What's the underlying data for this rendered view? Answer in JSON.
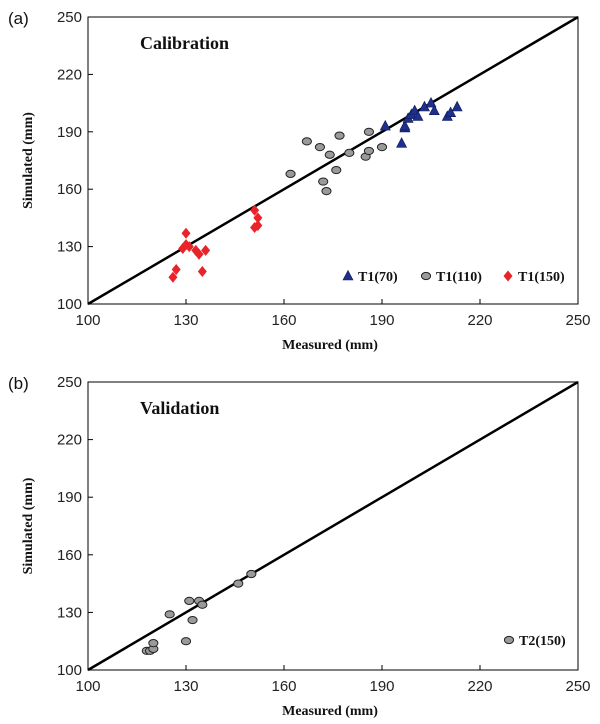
{
  "chart_data": [
    {
      "type": "scatter",
      "panel_label": "(a)",
      "title": "Calibration",
      "xlabel": "Measured (mm)",
      "ylabel": "Simulated (mm)",
      "xlim": [
        100,
        250
      ],
      "ylim": [
        100,
        250
      ],
      "xticks": [
        "100",
        "130",
        "160",
        "190",
        "220",
        "250"
      ],
      "yticks": [
        "100",
        "130",
        "160",
        "190",
        "220",
        "250"
      ],
      "reference_line": "1:1",
      "legend_position": "bottom-right",
      "series": [
        {
          "name": "T1(70)",
          "marker": "triangle",
          "color": "#1f2f8c",
          "points": [
            [
              191,
              193
            ],
            [
              196,
              184
            ],
            [
              197,
              192
            ],
            [
              197,
              193
            ],
            [
              198,
              197
            ],
            [
              199,
              199
            ],
            [
              200,
              201
            ],
            [
              201,
              198
            ],
            [
              203,
              203
            ],
            [
              205,
              205
            ],
            [
              206,
              201
            ],
            [
              210,
              198
            ],
            [
              211,
              200
            ],
            [
              213,
              203
            ]
          ]
        },
        {
          "name": "T1(110)",
          "marker": "circle",
          "color": "#9a9a9a",
          "points": [
            [
              162,
              168
            ],
            [
              167,
              185
            ],
            [
              171,
              182
            ],
            [
              172,
              164
            ],
            [
              173,
              159
            ],
            [
              174,
              178
            ],
            [
              176,
              170
            ],
            [
              177,
              188
            ],
            [
              180,
              179
            ],
            [
              185,
              177
            ],
            [
              186,
              180
            ],
            [
              186,
              190
            ],
            [
              190,
              182
            ]
          ]
        },
        {
          "name": "T1(150)",
          "marker": "diamond",
          "color": "#e8232a",
          "points": [
            [
              126,
              114
            ],
            [
              127,
              118
            ],
            [
              129,
              129
            ],
            [
              130,
              131
            ],
            [
              130,
              137
            ],
            [
              131,
              130
            ],
            [
              133,
              128
            ],
            [
              134,
              126
            ],
            [
              135,
              117
            ],
            [
              136,
              128
            ],
            [
              151,
              140
            ],
            [
              151,
              149
            ],
            [
              152,
              141
            ],
            [
              152,
              145
            ]
          ]
        }
      ]
    },
    {
      "type": "scatter",
      "panel_label": "(b)",
      "title": "Validation",
      "xlabel": "Measured (mm)",
      "ylabel": "Simulated (mm)",
      "xlim": [
        100,
        250
      ],
      "ylim": [
        100,
        250
      ],
      "xticks": [
        "100",
        "130",
        "160",
        "190",
        "220",
        "250"
      ],
      "yticks": [
        "100",
        "130",
        "160",
        "190",
        "220",
        "250"
      ],
      "reference_line": "1:1",
      "legend_position": "bottom-right",
      "series": [
        {
          "name": "T2(150)",
          "marker": "circle",
          "color": "#9a9a9a",
          "points": [
            [
              118,
              110
            ],
            [
              119,
              110
            ],
            [
              120,
              111
            ],
            [
              120,
              114
            ],
            [
              125,
              129
            ],
            [
              130,
              115
            ],
            [
              131,
              136
            ],
            [
              132,
              126
            ],
            [
              134,
              136
            ],
            [
              135,
              134
            ],
            [
              146,
              145
            ],
            [
              150,
              150
            ]
          ]
        }
      ]
    }
  ]
}
